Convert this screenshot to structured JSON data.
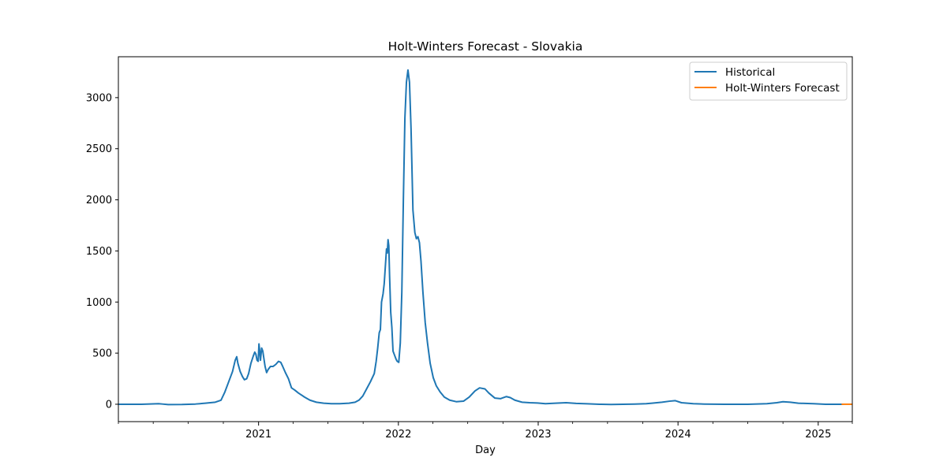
{
  "chart_data": {
    "type": "line",
    "title": "Holt-Winters Forecast - Slovakia",
    "xlabel": "Day",
    "ylabel": "",
    "x_type": "date",
    "xlim": [
      "2020-01-01",
      "2025-03-31"
    ],
    "ylim": [
      -170,
      3400
    ],
    "x_ticks": [
      {
        "date": "2021-01-01",
        "label": "2021"
      },
      {
        "date": "2022-01-01",
        "label": "2022"
      },
      {
        "date": "2023-01-01",
        "label": "2023"
      },
      {
        "date": "2024-01-01",
        "label": "2024"
      },
      {
        "date": "2025-01-01",
        "label": "2025"
      }
    ],
    "minor_x_ticks": [
      "2020-01-01",
      "2020-04-01",
      "2020-07-01",
      "2020-10-01",
      "2021-04-01",
      "2021-07-01",
      "2021-10-01",
      "2022-04-01",
      "2022-07-01",
      "2022-10-01",
      "2023-04-01",
      "2023-07-01",
      "2023-10-01",
      "2024-04-01",
      "2024-07-01",
      "2024-10-01",
      "2025-03-31"
    ],
    "y_ticks": [
      0,
      500,
      1000,
      1500,
      2000,
      2500,
      3000
    ],
    "grid": false,
    "legend": "top-right",
    "series": [
      {
        "name": "Historical",
        "color": "#1f77b4",
        "points": [
          [
            "2020-01-01",
            0
          ],
          [
            "2020-03-01",
            0
          ],
          [
            "2020-04-15",
            5
          ],
          [
            "2020-04-25",
            2
          ],
          [
            "2020-05-10",
            -3
          ],
          [
            "2020-06-15",
            -2
          ],
          [
            "2020-07-20",
            2
          ],
          [
            "2020-08-15",
            10
          ],
          [
            "2020-09-10",
            20
          ],
          [
            "2020-09-25",
            40
          ],
          [
            "2020-10-05",
            120
          ],
          [
            "2020-10-15",
            220
          ],
          [
            "2020-10-25",
            320
          ],
          [
            "2020-11-01",
            430
          ],
          [
            "2020-11-05",
            465
          ],
          [
            "2020-11-08",
            400
          ],
          [
            "2020-11-14",
            320
          ],
          [
            "2020-11-20",
            270
          ],
          [
            "2020-11-25",
            240
          ],
          [
            "2020-12-01",
            250
          ],
          [
            "2020-12-06",
            300
          ],
          [
            "2020-12-12",
            400
          ],
          [
            "2020-12-18",
            470
          ],
          [
            "2020-12-22",
            510
          ],
          [
            "2020-12-25",
            490
          ],
          [
            "2020-12-28",
            430
          ],
          [
            "2020-12-31",
            420
          ],
          [
            "2021-01-02",
            590
          ],
          [
            "2021-01-04",
            520
          ],
          [
            "2021-01-06",
            430
          ],
          [
            "2021-01-09",
            550
          ],
          [
            "2021-01-12",
            520
          ],
          [
            "2021-01-18",
            370
          ],
          [
            "2021-01-22",
            310
          ],
          [
            "2021-01-26",
            340
          ],
          [
            "2021-02-01",
            370
          ],
          [
            "2021-02-08",
            370
          ],
          [
            "2021-02-15",
            390
          ],
          [
            "2021-02-22",
            420
          ],
          [
            "2021-02-28",
            410
          ],
          [
            "2021-03-05",
            370
          ],
          [
            "2021-03-12",
            310
          ],
          [
            "2021-03-20",
            250
          ],
          [
            "2021-03-28",
            160
          ],
          [
            "2021-04-05",
            140
          ],
          [
            "2021-04-15",
            110
          ],
          [
            "2021-05-01",
            70
          ],
          [
            "2021-05-15",
            40
          ],
          [
            "2021-06-01",
            20
          ],
          [
            "2021-06-20",
            10
          ],
          [
            "2021-07-10",
            5
          ],
          [
            "2021-08-01",
            5
          ],
          [
            "2021-08-25",
            10
          ],
          [
            "2021-09-10",
            20
          ],
          [
            "2021-09-20",
            40
          ],
          [
            "2021-09-30",
            80
          ],
          [
            "2021-10-10",
            150
          ],
          [
            "2021-10-20",
            220
          ],
          [
            "2021-10-30",
            300
          ],
          [
            "2021-11-04",
            420
          ],
          [
            "2021-11-08",
            550
          ],
          [
            "2021-11-12",
            700
          ],
          [
            "2021-11-15",
            730
          ],
          [
            "2021-11-18",
            1000
          ],
          [
            "2021-11-22",
            1080
          ],
          [
            "2021-11-25",
            1180
          ],
          [
            "2021-11-28",
            1350
          ],
          [
            "2021-12-01",
            1520
          ],
          [
            "2021-12-03",
            1480
          ],
          [
            "2021-12-05",
            1610
          ],
          [
            "2021-12-07",
            1550
          ],
          [
            "2021-12-09",
            1260
          ],
          [
            "2021-12-12",
            900
          ],
          [
            "2021-12-15",
            750
          ],
          [
            "2021-12-18",
            520
          ],
          [
            "2021-12-22",
            480
          ],
          [
            "2021-12-26",
            440
          ],
          [
            "2021-12-29",
            420
          ],
          [
            "2022-01-02",
            410
          ],
          [
            "2022-01-06",
            600
          ],
          [
            "2022-01-10",
            1100
          ],
          [
            "2022-01-14",
            2000
          ],
          [
            "2022-01-18",
            2800
          ],
          [
            "2022-01-22",
            3150
          ],
          [
            "2022-01-26",
            3270
          ],
          [
            "2022-01-30",
            3150
          ],
          [
            "2022-02-03",
            2700
          ],
          [
            "2022-02-08",
            1900
          ],
          [
            "2022-02-13",
            1680
          ],
          [
            "2022-02-17",
            1620
          ],
          [
            "2022-02-21",
            1640
          ],
          [
            "2022-02-25",
            1580
          ],
          [
            "2022-03-01",
            1400
          ],
          [
            "2022-03-06",
            1100
          ],
          [
            "2022-03-12",
            800
          ],
          [
            "2022-03-18",
            600
          ],
          [
            "2022-03-25",
            400
          ],
          [
            "2022-04-02",
            260
          ],
          [
            "2022-04-10",
            180
          ],
          [
            "2022-04-20",
            120
          ],
          [
            "2022-05-01",
            70
          ],
          [
            "2022-05-15",
            40
          ],
          [
            "2022-06-01",
            25
          ],
          [
            "2022-06-20",
            30
          ],
          [
            "2022-07-05",
            70
          ],
          [
            "2022-07-20",
            130
          ],
          [
            "2022-08-01",
            160
          ],
          [
            "2022-08-15",
            150
          ],
          [
            "2022-08-25",
            110
          ],
          [
            "2022-09-10",
            60
          ],
          [
            "2022-09-25",
            55
          ],
          [
            "2022-10-10",
            75
          ],
          [
            "2022-10-20",
            65
          ],
          [
            "2022-11-01",
            40
          ],
          [
            "2022-11-20",
            20
          ],
          [
            "2022-12-10",
            15
          ],
          [
            "2022-12-30",
            12
          ],
          [
            "2023-01-20",
            5
          ],
          [
            "2023-02-15",
            10
          ],
          [
            "2023-03-15",
            15
          ],
          [
            "2023-04-10",
            8
          ],
          [
            "2023-05-10",
            4
          ],
          [
            "2023-06-10",
            0
          ],
          [
            "2023-07-10",
            -2
          ],
          [
            "2023-08-10",
            0
          ],
          [
            "2023-09-10",
            2
          ],
          [
            "2023-10-10",
            5
          ],
          [
            "2023-10-25",
            10
          ],
          [
            "2023-11-20",
            20
          ],
          [
            "2023-12-10",
            30
          ],
          [
            "2023-12-25",
            35
          ],
          [
            "2024-01-10",
            15
          ],
          [
            "2024-02-10",
            5
          ],
          [
            "2024-03-10",
            2
          ],
          [
            "2024-05-01",
            0
          ],
          [
            "2024-07-01",
            0
          ],
          [
            "2024-08-20",
            5
          ],
          [
            "2024-09-15",
            15
          ],
          [
            "2024-10-01",
            25
          ],
          [
            "2024-10-20",
            20
          ],
          [
            "2024-11-10",
            10
          ],
          [
            "2024-12-20",
            5
          ],
          [
            "2025-01-20",
            0
          ],
          [
            "2025-02-20",
            0
          ],
          [
            "2025-03-05",
            0
          ]
        ]
      },
      {
        "name": "Holt-Winters Forecast",
        "color": "#ff7f0e",
        "points": [
          [
            "2025-03-05",
            0
          ],
          [
            "2025-03-31",
            0
          ]
        ]
      }
    ]
  }
}
